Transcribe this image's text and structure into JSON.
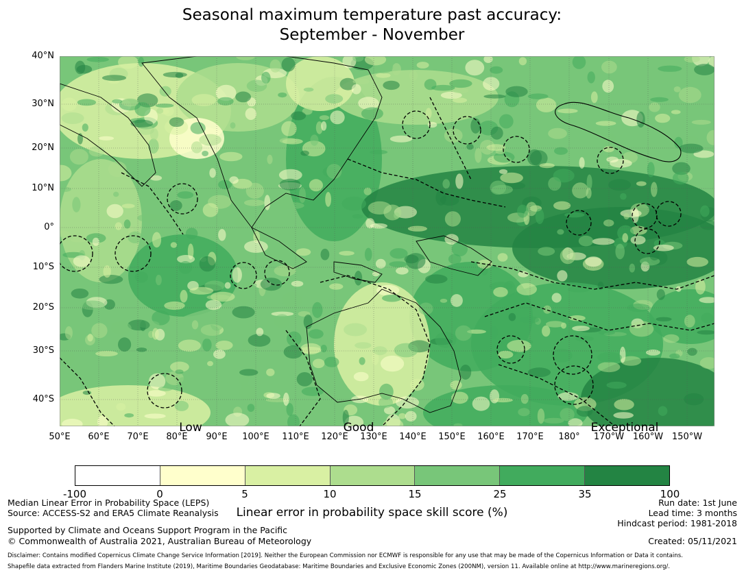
{
  "title": {
    "line1": "Seasonal maximum temperature past accuracy:",
    "line2": "September - November"
  },
  "map": {
    "lat_labels": [
      "40°N",
      "30°N",
      "20°N",
      "10°N",
      "0°",
      "10°S",
      "20°S",
      "30°S",
      "40°S"
    ],
    "lon_labels": [
      "50°E",
      "60°E",
      "70°E",
      "80°E",
      "90°E",
      "100°E",
      "110°E",
      "120°E",
      "130°E",
      "140°E",
      "150°E",
      "160°E",
      "170°E",
      "180°",
      "170°W",
      "160°W",
      "150°W"
    ],
    "category_labels": {
      "low": "Low",
      "good": "Good",
      "exceptional": "Exceptional"
    },
    "palette": [
      "#ffffff",
      "#ffffcc",
      "#d9f0a3",
      "#addd8e",
      "#78c679",
      "#41ab5d",
      "#238443"
    ],
    "land_color": "#f2f2f2",
    "outline_color": "#000000"
  },
  "colorbar": {
    "ticks": [
      "-100",
      "0",
      "5",
      "10",
      "15",
      "25",
      "35",
      "100"
    ],
    "colors": [
      "#ffffff",
      "#ffffcc",
      "#d9f0a3",
      "#addd8e",
      "#78c679",
      "#41ab5d",
      "#238443"
    ],
    "axis_label": "Linear error in probability space skill score (%)"
  },
  "footer": {
    "left_line1": "Median Linear Error in Probability Space (LEPS)",
    "left_line2": "Source: ACCESS-S2 and ERA5 Climate Reanalysis",
    "left_line3": "Supported by Climate and Oceans Support Program in the Pacific",
    "left_line4": "© Commonwealth of Australia 2021, Australian Bureau of Meteorology",
    "run_date": "Run date: 1st June",
    "lead_time": "Lead time: 3 months",
    "hindcast": "Hindcast period: 1981-2018",
    "created": "Created: 05/11/2021",
    "disclaimer1": "Disclaimer: Contains modified Copernicus Climate Change Service Information [2019]. Neither the European Commission nor ECMWF is responsible for any use that may be made of the Copernicus Information or Data it contains.",
    "disclaimer2": "Shapefile data extracted from Flanders Marine Institute (2019), Maritime Boundaries Geodatabase: Maritime Boundaries and Exclusive Economic Zones (200NM), version 11. Available online at http://www.marineregions.org/."
  }
}
